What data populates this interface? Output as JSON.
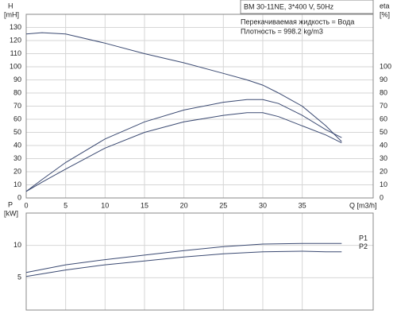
{
  "chart_data": [
    {
      "type": "line",
      "title": "BM 30-11NE, 3*400 V, 50Hz",
      "annotations": [
        "Перекачиваемая жидкость = Вода",
        "Плотность = 998.2 kg/m3"
      ],
      "y_label": "H",
      "y_unit": "[mH]",
      "y2_label": "eta",
      "y2_unit": "[%]",
      "x_label": "Q [m3/h]",
      "x": [
        0,
        2,
        5,
        10,
        15,
        20,
        25,
        28,
        30,
        32,
        35,
        38,
        40
      ],
      "series": [
        {
          "color": "#3b4a72",
          "values": [
            125,
            126,
            125,
            118,
            110,
            103,
            95,
            90,
            86,
            80,
            70,
            55,
            43
          ]
        },
        {
          "color": "#3b4a72",
          "axis": "y2",
          "values": [
            5,
            14,
            27,
            45,
            58,
            67,
            73,
            75,
            75,
            72,
            63,
            52,
            46
          ]
        },
        {
          "color": "#3b4a72",
          "axis": "y2",
          "values": [
            5,
            12,
            22,
            38,
            50,
            58,
            63,
            65,
            65,
            62,
            55,
            48,
            42
          ]
        }
      ],
      "xlim": [
        0,
        44
      ],
      "xticks": [
        0,
        5,
        10,
        15,
        20,
        25,
        30,
        35
      ],
      "ylim": [
        0,
        140
      ],
      "yticks": [
        0,
        10,
        20,
        30,
        40,
        50,
        60,
        70,
        80,
        90,
        100,
        110,
        120,
        130
      ],
      "y2lim": [
        0,
        140
      ],
      "y2ticks": [
        0,
        10,
        20,
        30,
        40,
        50,
        60,
        70,
        80,
        90,
        100
      ],
      "grid": true
    },
    {
      "type": "line",
      "y_label": "P",
      "y_unit": "[kW]",
      "x": [
        0,
        5,
        10,
        15,
        20,
        25,
        30,
        35,
        38,
        40
      ],
      "series": [
        {
          "name": "P1",
          "color": "#3b4a72",
          "values": [
            5.8,
            7,
            7.8,
            8.5,
            9.2,
            9.8,
            10.2,
            10.3,
            10.3,
            10.3
          ]
        },
        {
          "name": "P2",
          "color": "#3b4a72",
          "values": [
            5.2,
            6.2,
            7,
            7.6,
            8.2,
            8.7,
            9,
            9.1,
            9,
            9
          ]
        }
      ],
      "xlim": [
        0,
        44
      ],
      "xticks": [
        0,
        5,
        10,
        15,
        20,
        25,
        30,
        35
      ],
      "ylim": [
        0,
        15
      ],
      "yticks": [
        5,
        10
      ],
      "grid": true
    }
  ]
}
